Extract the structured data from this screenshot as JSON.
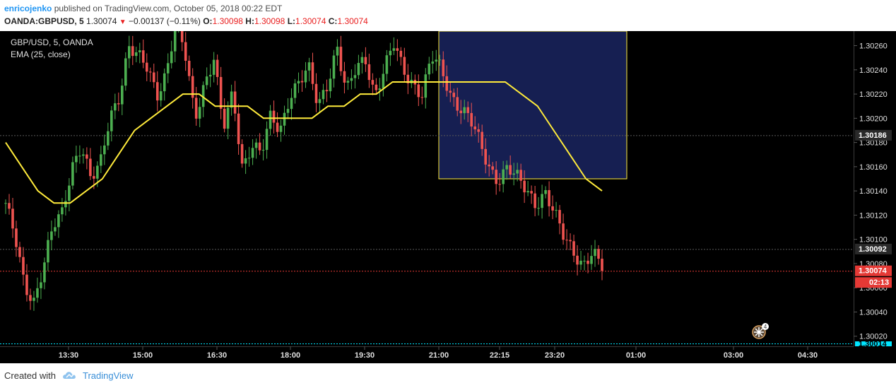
{
  "header": {
    "author": "enricojenko",
    "published_text": "published on TradingView.com, October 05, 2018 00:22 EDT",
    "symbol": "OANDA:GBPUSD, 5",
    "last_price": "1.30074",
    "change": "−0.00137 (−0.11%)",
    "o_label": "O:",
    "o_value": "1.30098",
    "h_label": "H:",
    "h_value": "1.30098",
    "l_label": "L:",
    "l_value": "1.30074",
    "c_label": "C:",
    "c_value": "1.30074"
  },
  "legend": {
    "title": "GBP/USD, 5, OANDA",
    "indicator": "EMA (25, close)"
  },
  "footer": {
    "created_with": "Created with",
    "brand": "TradingView"
  },
  "colors": {
    "background": "#000000",
    "up": "#4caf50",
    "down": "#ef5350",
    "ema": "#ffeb3b",
    "box_fill": "#1e2a6e",
    "box_border": "#ffeb3b",
    "last_price_tag": "#e53935",
    "bottom_line": "#00e5ff"
  },
  "chart_data": {
    "type": "candlestick",
    "x_ticks": [
      "13:30",
      "15:00",
      "16:30",
      "18:00",
      "19:30",
      "21:00",
      "22:15",
      "23:20",
      "01:00",
      "03:00",
      "04:30"
    ],
    "y_ticks": [
      "1.30260",
      "1.30240",
      "1.30220",
      "1.30200",
      "1.30180",
      "1.30160",
      "1.30140",
      "1.30120",
      "1.30100",
      "1.30080",
      "1.30060",
      "1.30040",
      "1.30020"
    ],
    "ylim": [
      1.30014,
      1.30272
    ],
    "price_labels": [
      {
        "value": 1.30186,
        "text": "1.30186",
        "style": "gray"
      },
      {
        "value": 1.30092,
        "text": "1.30092",
        "style": "gray"
      },
      {
        "value": 1.30074,
        "text": "1.30074",
        "style": "red"
      },
      {
        "value": 1.30014,
        "text": "1.30014",
        "style": "cyan"
      }
    ],
    "countdown": "02:13",
    "event_badge_count": "4",
    "price_path": [
      1.3013,
      1.301,
      1.3006,
      1.3005,
      1.3008,
      1.3011,
      1.3012,
      1.3016,
      1.3018,
      1.3015,
      1.3016,
      1.302,
      1.3022,
      1.3026,
      1.3025,
      1.3024,
      1.3022,
      1.3024,
      1.3028,
      1.3025,
      1.302,
      1.3023,
      1.3025,
      1.3019,
      1.3022,
      1.3016,
      1.3018,
      1.3017,
      1.302,
      1.3019,
      1.3022,
      1.3023,
      1.3024,
      1.3021,
      1.3023,
      1.3026,
      1.3022,
      1.3024,
      1.3025,
      1.3022,
      1.3024,
      1.3026,
      1.3024,
      1.3023,
      1.3022,
      1.3025,
      1.3024,
      1.3022,
      1.3021,
      1.302,
      1.3018,
      1.3016,
      1.3015,
      1.3016,
      1.3015,
      1.3014,
      1.3013,
      1.3014,
      1.3012,
      1.301,
      1.3009,
      1.3008,
      1.3009,
      1.30074
    ],
    "ema_path": [
      1.3018,
      1.3016,
      1.3014,
      1.3013,
      1.3013,
      1.3014,
      1.3015,
      1.3017,
      1.3019,
      1.302,
      1.3021,
      1.3022,
      1.3022,
      1.3021,
      1.3021,
      1.3021,
      1.302,
      1.302,
      1.302,
      1.302,
      1.3021,
      1.3021,
      1.3022,
      1.3022,
      1.3023,
      1.3023,
      1.3023,
      1.3023,
      1.3023,
      1.3023,
      1.3023,
      1.3023,
      1.3022,
      1.3021,
      1.3019,
      1.3017,
      1.3015,
      1.3014
    ],
    "highlight_box": {
      "start": "21:00",
      "end": "00:55",
      "high": 1.30272,
      "low": 1.3015
    }
  }
}
